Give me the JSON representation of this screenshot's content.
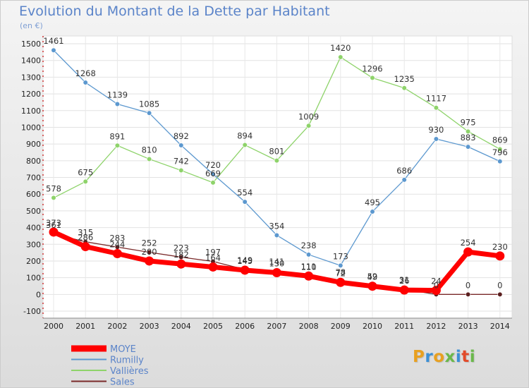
{
  "header": {
    "title": "Evolution du Montant de la Dette par Habitant",
    "unit": "(en €)"
  },
  "logo": {
    "text": "Proxiti",
    "colors": [
      "#e8a020",
      "#3a8fd6",
      "#e8a020",
      "#6ab84a",
      "#3a8fd6",
      "#e24a2a",
      "#6ab84a"
    ]
  },
  "chart_data": {
    "type": "line",
    "title": "Evolution du Montant de la Dette par Habitant",
    "subtitle": "(en €)",
    "xlabel": "",
    "ylabel": "",
    "ylim": [
      -100,
      1500
    ],
    "yticks": [
      -100,
      0,
      100,
      200,
      300,
      400,
      500,
      600,
      700,
      800,
      900,
      1000,
      1100,
      1200,
      1300,
      1400,
      1500
    ],
    "categories": [
      "2000",
      "2001",
      "2002",
      "2003",
      "2004",
      "2005",
      "2006",
      "2007",
      "2008",
      "2009",
      "2010",
      "2011",
      "2012",
      "2013",
      "2014"
    ],
    "grid": true,
    "legend": "bottom-left",
    "series": [
      {
        "name": "Vallières",
        "color": "#8ed36a",
        "values": [
          578,
          675,
          891,
          810,
          742,
          669,
          894,
          801,
          1009,
          1420,
          1296,
          1235,
          1117,
          975,
          869
        ]
      },
      {
        "name": "Rumilly",
        "color": "#5c98cf",
        "values": [
          1461,
          1268,
          1139,
          1085,
          892,
          720,
          554,
          354,
          238,
          173,
          495,
          686,
          930,
          883,
          796
        ]
      },
      {
        "name": "Sales",
        "color": "#7a2a2a",
        "values": [
          361,
          315,
          283,
          252,
          223,
          197,
          149,
          141,
          111,
          78,
          52,
          31,
          0,
          0,
          0
        ]
      },
      {
        "name": "MOYE",
        "color": "#ff0000",
        "values": [
          373,
          286,
          244,
          200,
          182,
          164,
          145,
          130,
          110,
          72,
          49,
          26,
          24,
          254,
          230
        ]
      }
    ]
  }
}
